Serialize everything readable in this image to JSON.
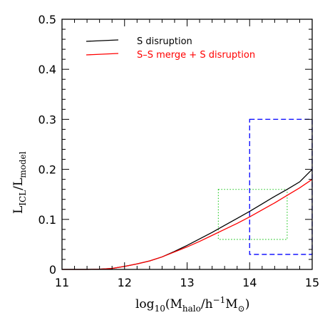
{
  "chart_data": {
    "type": "line",
    "title": "",
    "xlabel": "log10(Mhalo/h−1M⊙)",
    "ylabel": "LICL/Lmodel",
    "xlim": [
      11,
      15
    ],
    "ylim": [
      0,
      0.5
    ],
    "x_ticks": [
      {
        "value": 11,
        "label": "11"
      },
      {
        "value": 12,
        "label": "12"
      },
      {
        "value": 13,
        "label": "13"
      },
      {
        "value": 14,
        "label": "14"
      },
      {
        "value": 15,
        "label": "15"
      }
    ],
    "y_ticks": [
      {
        "value": 0,
        "label": "0"
      },
      {
        "value": 0.1,
        "label": "0.1"
      },
      {
        "value": 0.2,
        "label": "0.2"
      },
      {
        "value": 0.3,
        "label": "0.3"
      },
      {
        "value": 0.4,
        "label": "0.4"
      },
      {
        "value": 0.5,
        "label": "0.5"
      }
    ],
    "legend_position": "top-left",
    "series": [
      {
        "name": "S disruption",
        "color": "#000000",
        "x": [
          11.0,
          11.4,
          11.6,
          11.8,
          12.0,
          12.2,
          12.4,
          12.6,
          12.8,
          13.0,
          13.2,
          13.4,
          13.6,
          13.8,
          14.0,
          14.2,
          14.4,
          14.6,
          14.8,
          15.0
        ],
        "y": [
          0.0,
          0.0,
          0.0005,
          0.002,
          0.006,
          0.011,
          0.017,
          0.025,
          0.036,
          0.048,
          0.061,
          0.074,
          0.088,
          0.102,
          0.116,
          0.131,
          0.146,
          0.16,
          0.175,
          0.2
        ]
      },
      {
        "name": "S–S merge + S disruption",
        "color": "#ff0000",
        "x": [
          11.0,
          11.4,
          11.6,
          11.8,
          12.0,
          12.2,
          12.4,
          12.6,
          12.8,
          13.0,
          13.2,
          13.4,
          13.6,
          13.8,
          14.0,
          14.2,
          14.4,
          14.6,
          14.8,
          15.0
        ],
        "y": [
          0.0,
          0.0,
          0.0005,
          0.002,
          0.006,
          0.011,
          0.017,
          0.025,
          0.035,
          0.045,
          0.056,
          0.068,
          0.08,
          0.092,
          0.105,
          0.119,
          0.133,
          0.148,
          0.163,
          0.18
        ]
      }
    ],
    "regions": [
      {
        "kind": "green-dotted-box",
        "color": "#33cc33",
        "style": "dotted",
        "x": [
          13.5,
          14.6
        ],
        "y": [
          0.06,
          0.16
        ]
      },
      {
        "kind": "blue-dashed-box",
        "color": "#0000ff",
        "style": "dashed",
        "x": [
          14.0,
          15.0
        ],
        "y": [
          0.03,
          0.3
        ]
      }
    ]
  }
}
